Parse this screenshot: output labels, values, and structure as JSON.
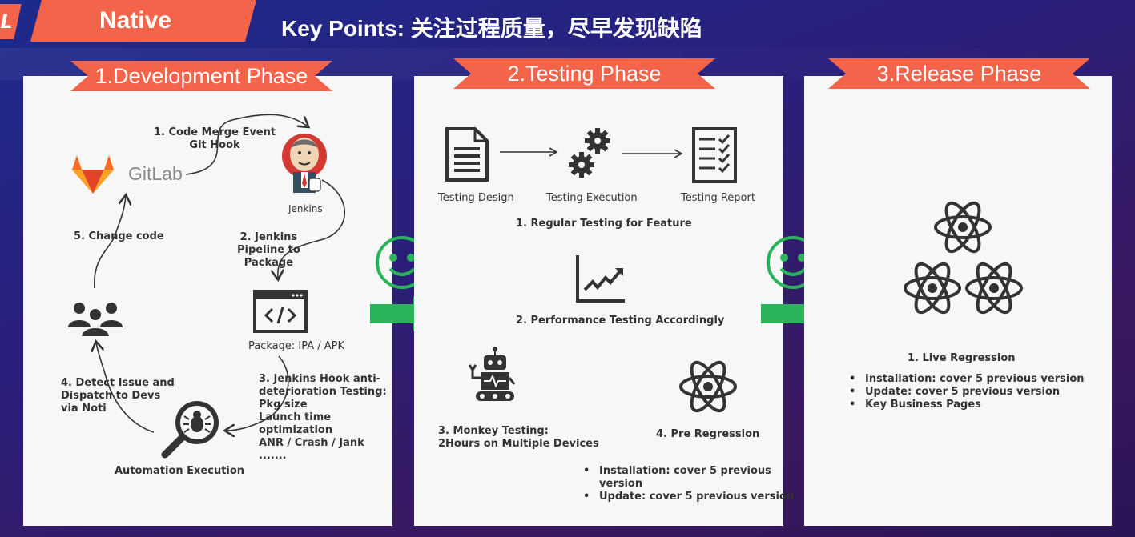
{
  "header": {
    "left_tag": "Native",
    "title": "Key Points: 关注过程质量，尽早发现缺陷",
    "corner_mark": "L"
  },
  "colors": {
    "accent": "#f4644a",
    "green": "#2bb35a",
    "panel": "#f7f7f7"
  },
  "dev": {
    "title": "1.Development Phase",
    "gitlab": "GitLab",
    "step1": "1. Code Merge Event\nGit Hook",
    "jenkins": "Jenkins",
    "step2": "2. Jenkins\nPipeline to\nPackage",
    "package": "Package: IPA / APK",
    "step3": "3. Jenkins Hook anti-\ndeterioration Testing:\nPkg size\nLaunch time\noptimization\nANR / Crash / Jank\n.......",
    "automation": "Automation Execution",
    "step4": "4. Detect Issue and\nDispatch to Devs\nvia Noti",
    "step5": "5. Change code"
  },
  "testing": {
    "title": "2.Testing Phase",
    "design": "Testing Design",
    "execution": "Testing Execution",
    "report": "Testing Report",
    "regular": "1. Regular Testing for Feature",
    "perf": "2. Performance Testing Accordingly",
    "monkey": "3. Monkey Testing:\n2Hours on Multiple Devices",
    "preregression": "4. Pre Regression",
    "bullets": [
      "Installation: cover 5 previous\nversion",
      "Update: cover 5 previous version"
    ]
  },
  "release": {
    "title": "3.Release Phase",
    "live": "1. Live Regression",
    "bullets": [
      "Installation: cover 5 previous version",
      "Update: cover 5 previous version",
      "Key Business Pages"
    ]
  }
}
